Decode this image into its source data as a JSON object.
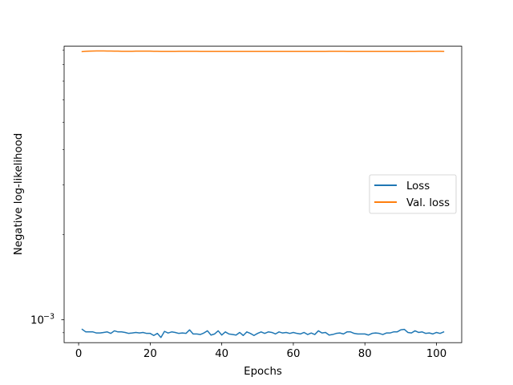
{
  "chart_data": {
    "type": "line",
    "title": "",
    "xlabel": "Epochs",
    "ylabel": "Negative log-likelihood",
    "xlim": [
      -4.05,
      107.05
    ],
    "ylim": [
      0.00083,
      0.0093
    ],
    "y_scale": "log",
    "grid": false,
    "legend_position": "center-right",
    "x_ticks": [
      0,
      20,
      40,
      60,
      80,
      100
    ],
    "x_tick_labels": [
      "0",
      "20",
      "40",
      "60",
      "80",
      "100"
    ],
    "y_ticks": [
      0.001
    ],
    "y_tick_labels": [
      "10",
      "−3"
    ],
    "series": [
      {
        "name": "Loss",
        "color": "#1f77b4",
        "x": [
          1,
          2,
          3,
          4,
          5,
          6,
          7,
          8,
          9,
          10,
          11,
          12,
          13,
          14,
          15,
          16,
          17,
          18,
          19,
          20,
          21,
          22,
          23,
          24,
          25,
          26,
          27,
          28,
          29,
          30,
          31,
          32,
          33,
          34,
          35,
          36,
          37,
          38,
          39,
          40,
          41,
          42,
          43,
          44,
          45,
          46,
          47,
          48,
          49,
          50,
          51,
          52,
          53,
          54,
          55,
          56,
          57,
          58,
          59,
          60,
          61,
          62,
          63,
          64,
          65,
          66,
          67,
          68,
          69,
          70,
          71,
          72,
          73,
          74,
          75,
          76,
          77,
          78,
          79,
          80,
          81,
          82,
          83,
          84,
          85,
          86,
          87,
          88,
          89,
          90,
          91,
          92,
          93,
          94,
          95,
          96,
          97,
          98,
          99,
          100,
          101,
          102
        ],
        "values": [
          0.000925,
          0.000906,
          0.000906,
          0.000906,
          0.000898,
          0.000898,
          0.000902,
          0.000906,
          0.000895,
          0.000914,
          0.000906,
          0.000906,
          0.000902,
          0.000895,
          0.000898,
          0.000902,
          0.000898,
          0.000902,
          0.000895,
          0.000895,
          0.00088,
          0.000895,
          0.000866,
          0.00091,
          0.000898,
          0.000906,
          0.000902,
          0.000895,
          0.000898,
          0.000895,
          0.000921,
          0.000891,
          0.000891,
          0.000887,
          0.000898,
          0.000914,
          0.000883,
          0.000891,
          0.000914,
          0.000883,
          0.000906,
          0.000891,
          0.000887,
          0.000883,
          0.000902,
          0.00088,
          0.000906,
          0.000895,
          0.00088,
          0.000895,
          0.000906,
          0.000895,
          0.000906,
          0.000902,
          0.000891,
          0.000906,
          0.000898,
          0.000902,
          0.000895,
          0.000902,
          0.000895,
          0.000891,
          0.000902,
          0.000887,
          0.000898,
          0.000887,
          0.000914,
          0.000898,
          0.000902,
          0.000883,
          0.000887,
          0.000895,
          0.000898,
          0.000891,
          0.000906,
          0.000906,
          0.000895,
          0.000891,
          0.000891,
          0.000891,
          0.000883,
          0.000895,
          0.000898,
          0.000895,
          0.000887,
          0.000898,
          0.000898,
          0.000906,
          0.000906,
          0.000921,
          0.000925,
          0.000902,
          0.000898,
          0.000914,
          0.000902,
          0.000906,
          0.000895,
          0.000898,
          0.000891,
          0.000902,
          0.000895,
          0.000906
        ]
      },
      {
        "name": "Val. loss",
        "color": "#ff7f0e",
        "x": [
          1,
          2,
          3,
          4,
          5,
          6,
          7,
          8,
          9,
          10,
          11,
          12,
          13,
          14,
          15,
          16,
          17,
          18,
          19,
          20,
          21,
          22,
          23,
          24,
          25,
          26,
          27,
          28,
          29,
          30,
          31,
          32,
          33,
          34,
          35,
          36,
          37,
          38,
          39,
          40,
          41,
          42,
          43,
          44,
          45,
          46,
          47,
          48,
          49,
          50,
          51,
          52,
          53,
          54,
          55,
          56,
          57,
          58,
          59,
          60,
          61,
          62,
          63,
          64,
          65,
          66,
          67,
          68,
          69,
          70,
          71,
          72,
          73,
          74,
          75,
          76,
          77,
          78,
          79,
          80,
          81,
          82,
          83,
          84,
          85,
          86,
          87,
          88,
          89,
          90,
          91,
          92,
          93,
          94,
          95,
          96,
          97,
          98,
          99,
          100,
          101,
          102
        ],
        "values": [
          0.0089,
          0.00892,
          0.00893,
          0.00894,
          0.00895,
          0.00895,
          0.00895,
          0.00894,
          0.00894,
          0.00893,
          0.00893,
          0.00892,
          0.00892,
          0.00892,
          0.00892,
          0.00893,
          0.00893,
          0.00893,
          0.00893,
          0.00893,
          0.00892,
          0.00892,
          0.00891,
          0.00891,
          0.00891,
          0.00891,
          0.00891,
          0.00892,
          0.00892,
          0.00892,
          0.00892,
          0.00892,
          0.00892,
          0.00891,
          0.00891,
          0.00891,
          0.00891,
          0.00891,
          0.00891,
          0.00891,
          0.00891,
          0.00891,
          0.00891,
          0.00891,
          0.00891,
          0.00891,
          0.00891,
          0.00891,
          0.00891,
          0.00891,
          0.00891,
          0.00891,
          0.00891,
          0.00891,
          0.00891,
          0.00891,
          0.00891,
          0.00891,
          0.00891,
          0.00891,
          0.00891,
          0.00891,
          0.00891,
          0.00891,
          0.00891,
          0.00891,
          0.00891,
          0.00891,
          0.00891,
          0.00892,
          0.00892,
          0.00892,
          0.00892,
          0.00892,
          0.00891,
          0.00891,
          0.00891,
          0.00891,
          0.00891,
          0.00891,
          0.00891,
          0.00891,
          0.00891,
          0.00891,
          0.00891,
          0.00891,
          0.00891,
          0.00891,
          0.00891,
          0.00891,
          0.00891,
          0.00891,
          0.00891,
          0.00891,
          0.00892,
          0.00892,
          0.00892,
          0.00892,
          0.00892,
          0.00892,
          0.00892,
          0.00891
        ]
      }
    ]
  }
}
